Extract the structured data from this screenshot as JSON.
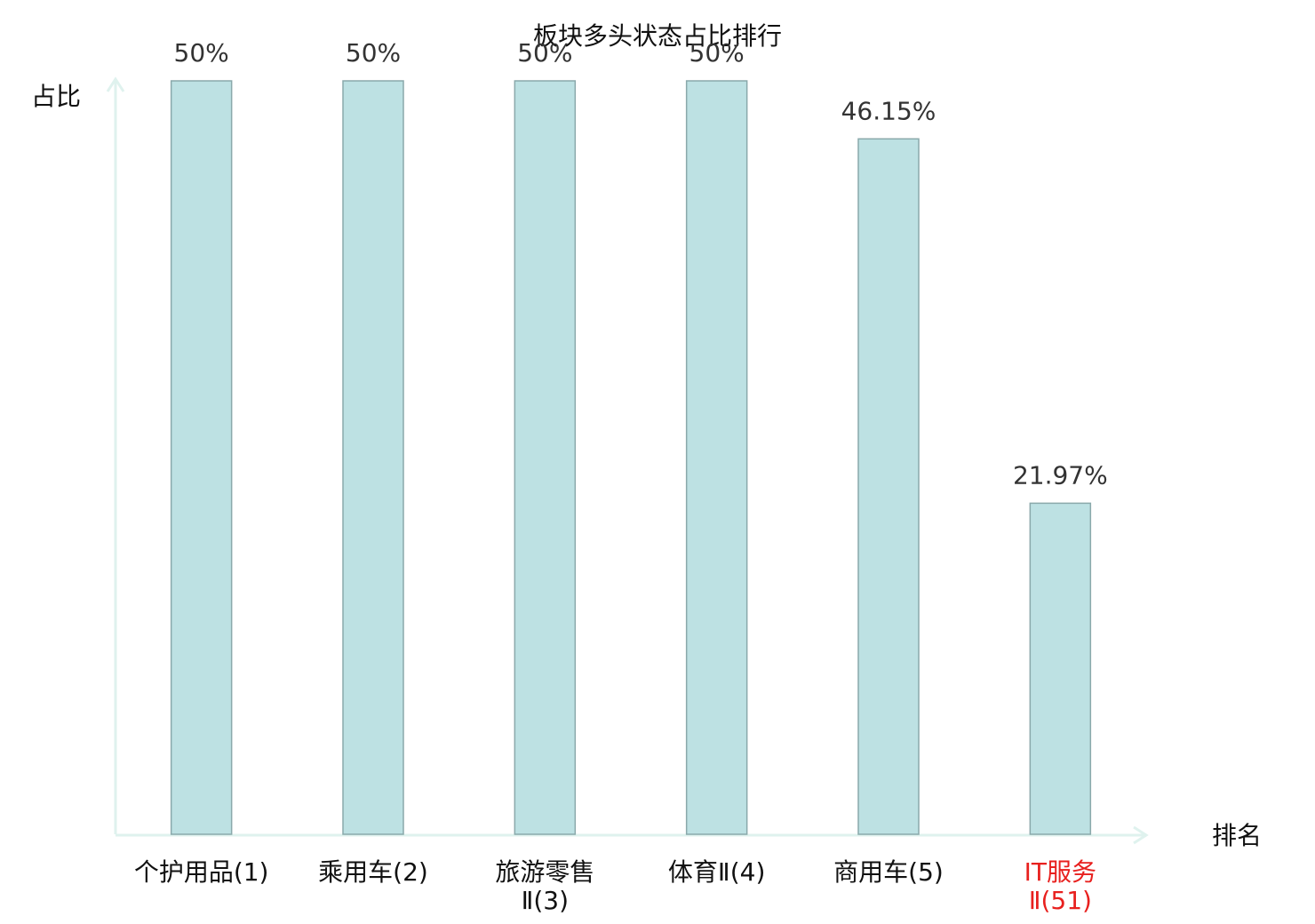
{
  "chart_data": {
    "type": "bar",
    "title": "板块多头状态占比排行",
    "ylabel": "占比",
    "xlabel": "排名",
    "categories": [
      "个护用品(1)",
      "乘用车(2)",
      "旅游零售\nⅡ(3)",
      "体育Ⅱ(4)",
      "商用车(5)",
      "IT服务\nⅡ(51)"
    ],
    "category_colors": [
      "#111111",
      "#111111",
      "#111111",
      "#111111",
      "#111111",
      "#e8201e"
    ],
    "values": [
      50,
      50,
      50,
      50,
      46.15,
      21.97
    ],
    "value_labels": [
      "50%",
      "50%",
      "50%",
      "50%",
      "46.15%",
      "21.97%"
    ],
    "color": "#bde1e3",
    "edge_color": "#8aa9ab",
    "axis_color": "#dff2ee",
    "ylim": [
      0,
      50
    ]
  }
}
